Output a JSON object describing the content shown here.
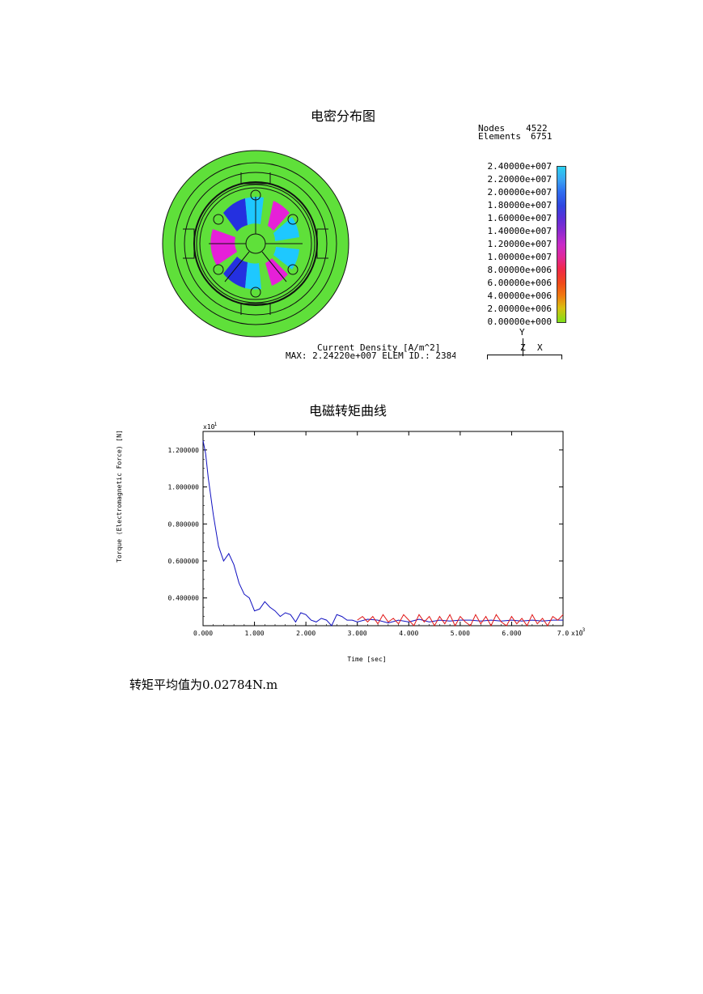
{
  "fig1": {
    "title": "电密分布图",
    "nodes_label": "Nodes",
    "nodes_value": "4522",
    "elements_label": "Elements",
    "elements_value": "6751",
    "legend": [
      "2.40000e+007",
      "2.20000e+007",
      "2.00000e+007",
      "1.80000e+007",
      "1.60000e+007",
      "1.40000e+007",
      "1.20000e+007",
      "1.00000e+007",
      "8.00000e+006",
      "6.00000e+006",
      "4.00000e+006",
      "2.00000e+006",
      "0.00000e+000"
    ],
    "legend_colors": [
      "#2ad0f0",
      "#3aa6f2",
      "#2f6ef0",
      "#2f46e0",
      "#5a2fd8",
      "#8a2ad0",
      "#c82ac8",
      "#e0289a",
      "#f02848",
      "#f04a18",
      "#f07a10",
      "#d8c010",
      "#7ee018"
    ],
    "field_label": "Current Density [A/m^2]",
    "max_label": "MAX: 2.24220e+007  ELEM ID.: 2384",
    "axis_y": "Y",
    "axis_z": "Z",
    "axis_x": "X",
    "colors": {
      "body_green": "#5fe03a",
      "copper_blue": "#1ec8ff",
      "coil_purple": "#2430e0",
      "magenta": "#e620d8"
    }
  },
  "fig2": {
    "title": "电磁转矩曲线",
    "chart_data": {
      "type": "line",
      "ylabel": "Torque (Electromagnetic Force) [N]",
      "xlabel": "Time [sec]",
      "x_multiplier": "x10^-3",
      "y_multiplier": "x10^-1",
      "xlim": [
        0,
        7
      ],
      "ylim": [
        0.25,
        1.3
      ],
      "x_ticks": [
        "0.000",
        "1.000",
        "2.000",
        "3.000",
        "4.000",
        "5.000",
        "6.000",
        "7.0"
      ],
      "x_exponent_label": "x10",
      "x_exponent": "-3",
      "y_exponent_label": "x10",
      "y_exponent": "-1",
      "y_ticks": [
        "1.200000",
        "1.000000",
        "0.800000",
        "0.600000",
        "0.400000"
      ],
      "y_tick_values": [
        1.2,
        1.0,
        0.8,
        0.6,
        0.4
      ],
      "series": [
        {
          "color": "#1010c0",
          "x": [
            0.0,
            0.05,
            0.1,
            0.2,
            0.3,
            0.4,
            0.5,
            0.6,
            0.7,
            0.8,
            0.9,
            1.0,
            1.1,
            1.2,
            1.3,
            1.4,
            1.5,
            1.6,
            1.7,
            1.8,
            1.9,
            2.0,
            2.1,
            2.2,
            2.3,
            2.4,
            2.5,
            2.6,
            2.7,
            2.8,
            2.9,
            3.0,
            3.2,
            3.4,
            3.6,
            3.8,
            4.0,
            4.2,
            4.4,
            4.6,
            4.8,
            5.0,
            5.2,
            5.4,
            5.6,
            5.8,
            6.0,
            6.2,
            6.4,
            6.6,
            6.8,
            7.0
          ],
          "y": [
            1.25,
            1.18,
            1.05,
            0.85,
            0.68,
            0.6,
            0.64,
            0.58,
            0.48,
            0.42,
            0.4,
            0.33,
            0.34,
            0.38,
            0.35,
            0.33,
            0.3,
            0.32,
            0.31,
            0.27,
            0.32,
            0.31,
            0.28,
            0.27,
            0.29,
            0.28,
            0.25,
            0.31,
            0.3,
            0.28,
            0.28,
            0.27,
            0.285,
            0.28,
            0.265,
            0.28,
            0.27,
            0.285,
            0.27,
            0.28,
            0.275,
            0.28,
            0.28,
            0.275,
            0.28,
            0.275,
            0.28,
            0.275,
            0.28,
            0.275,
            0.28,
            0.28
          ]
        },
        {
          "color": "#e01818",
          "x": [
            3.0,
            3.1,
            3.2,
            3.3,
            3.4,
            3.5,
            3.6,
            3.7,
            3.8,
            3.9,
            4.0,
            4.1,
            4.2,
            4.3,
            4.4,
            4.5,
            4.6,
            4.7,
            4.8,
            4.9,
            5.0,
            5.1,
            5.2,
            5.3,
            5.4,
            5.5,
            5.6,
            5.7,
            5.8,
            5.9,
            6.0,
            6.1,
            6.2,
            6.3,
            6.4,
            6.5,
            6.6,
            6.7,
            6.8,
            6.9,
            7.0
          ],
          "y": [
            0.28,
            0.3,
            0.27,
            0.3,
            0.26,
            0.31,
            0.27,
            0.29,
            0.26,
            0.31,
            0.28,
            0.25,
            0.31,
            0.27,
            0.3,
            0.25,
            0.3,
            0.26,
            0.31,
            0.25,
            0.3,
            0.27,
            0.25,
            0.31,
            0.26,
            0.3,
            0.25,
            0.31,
            0.27,
            0.25,
            0.3,
            0.26,
            0.29,
            0.25,
            0.31,
            0.26,
            0.29,
            0.25,
            0.3,
            0.28,
            0.31
          ]
        }
      ]
    }
  },
  "summary": "转矩平均值为0.02784N.m"
}
